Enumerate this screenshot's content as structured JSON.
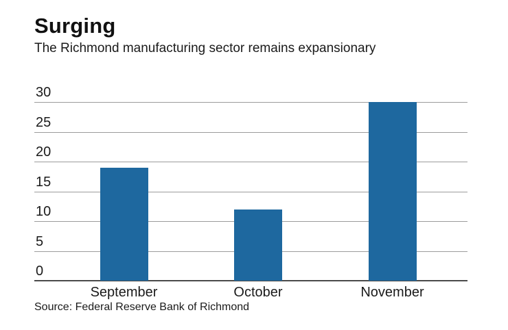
{
  "page": {
    "title": "Surging",
    "subtitle": "The Richmond manufacturing sector remains expansionary",
    "source": "Source: Federal Reserve Bank of Richmond"
  },
  "colors": {
    "bar": "#1e689f",
    "gridline": "#9b9b9b",
    "baseline": "#4a4a4a",
    "text": "#1a1a1a",
    "background": "#ffffff"
  },
  "chart_data": {
    "type": "bar",
    "title": "Surging",
    "subtitle": "The Richmond manufacturing sector remains expansionary",
    "categories": [
      "September",
      "October",
      "November"
    ],
    "values": [
      19,
      12,
      30
    ],
    "xlabel": "",
    "ylabel": "",
    "ylim": [
      0,
      30
    ],
    "yticks": [
      0,
      5,
      10,
      15,
      20,
      25,
      30
    ],
    "grid": true,
    "legend": false,
    "source": "Source: Federal Reserve Bank of Richmond"
  }
}
